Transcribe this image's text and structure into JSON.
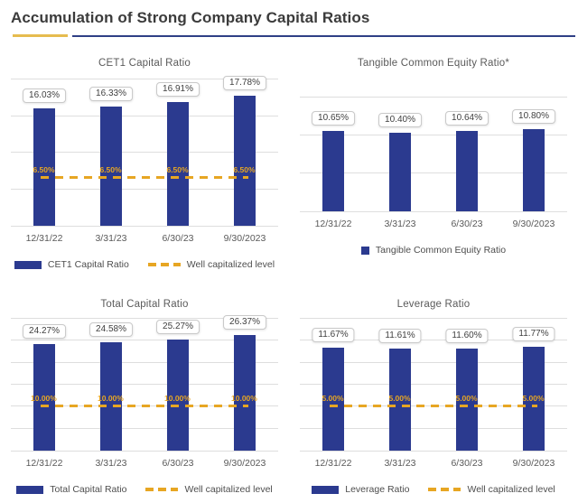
{
  "page": {
    "title": "Accumulation of Strong Company Capital Ratios"
  },
  "colors": {
    "bar_navy": "#2B3A8F",
    "threshold_gold": "#E7A623",
    "underline_gold": "#E6BC4F",
    "underline_navy": "#2F3F85",
    "gridline_gray": "#DEDEDE"
  },
  "chart_data": [
    {
      "type": "bar",
      "title": "CET1 Capital Ratio",
      "categories": [
        "12/31/22",
        "3/31/23",
        "6/30/23",
        "9/30/2023"
      ],
      "values": [
        16.03,
        16.33,
        16.91,
        17.78
      ],
      "value_labels": [
        "16.03%",
        "16.33%",
        "16.91%",
        "17.78%"
      ],
      "threshold": 6.5,
      "threshold_label": "6.50%",
      "ylim": [
        0,
        20
      ],
      "grid_step": 5,
      "grid": true,
      "legend_position": "bottom",
      "legend": [
        {
          "swatch": "bar",
          "label": "CET1 Capital Ratio"
        },
        {
          "swatch": "dash",
          "label": "Well capitalized level"
        }
      ]
    },
    {
      "type": "bar",
      "title": "Tangible Common Equity Ratio*",
      "categories": [
        "12/31/22",
        "3/31/23",
        "6/30/23",
        "9/30/2023"
      ],
      "values": [
        10.65,
        10.4,
        10.64,
        10.8
      ],
      "value_labels": [
        "10.65%",
        "10.40%",
        "10.64%",
        "10.80%"
      ],
      "threshold": null,
      "threshold_label": "",
      "ylim": [
        0,
        15
      ],
      "grid_step": 5,
      "grid": true,
      "legend_position": "bottom",
      "legend": [
        {
          "swatch": "square",
          "label": "Tangible Common Equity Ratio"
        }
      ]
    },
    {
      "type": "bar",
      "title": "Total Capital Ratio",
      "categories": [
        "12/31/22",
        "3/31/23",
        "6/30/23",
        "9/30/2023"
      ],
      "values": [
        24.27,
        24.58,
        25.27,
        26.37
      ],
      "value_labels": [
        "24.27%",
        "24.58%",
        "25.27%",
        "26.37%"
      ],
      "threshold": 10,
      "threshold_label": "10.00%",
      "ylim": [
        0,
        30
      ],
      "grid_step": 5,
      "grid": true,
      "legend_position": "bottom",
      "legend": [
        {
          "swatch": "bar",
          "label": "Total Capital Ratio"
        },
        {
          "swatch": "dash",
          "label": "Well capitalized level"
        }
      ]
    },
    {
      "type": "bar",
      "title": "Leverage Ratio",
      "categories": [
        "12/31/22",
        "3/31/23",
        "6/30/23",
        "9/30/2023"
      ],
      "values": [
        11.67,
        11.61,
        11.6,
        11.77
      ],
      "value_labels": [
        "11.67%",
        "11.61%",
        "11.60%",
        "11.77%"
      ],
      "threshold": 5,
      "threshold_label": "5.00%",
      "ylim": [
        0,
        15
      ],
      "grid_step": 2.5,
      "grid": true,
      "legend_position": "bottom",
      "legend": [
        {
          "swatch": "bar",
          "label": "Leverage Ratio"
        },
        {
          "swatch": "dash",
          "label": "Well capitalized level"
        }
      ]
    }
  ]
}
